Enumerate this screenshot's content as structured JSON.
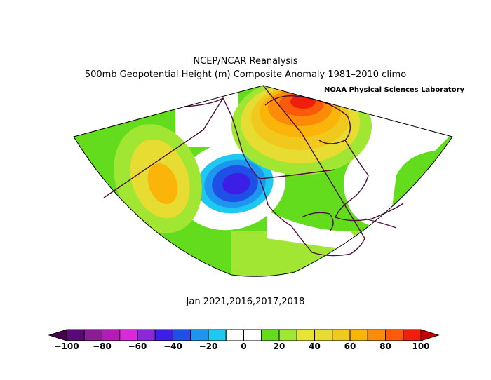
{
  "title": {
    "line1": "NCEP/NCAR Reanalysis",
    "line2": "500mb Geopotential Height (m) Composite Anomaly 1981–2010 climo",
    "credit": "NOAA Physical Sciences Laboratory"
  },
  "subtitle": "Jan 2021,2016,2017,2018",
  "colorbar": {
    "labels": [
      "−100",
      "−80",
      "−60",
      "−40",
      "−20",
      "0",
      "20",
      "40",
      "60",
      "80",
      "100"
    ],
    "bins": [
      {
        "value": -95,
        "color": "#5a0a78"
      },
      {
        "value": -85,
        "color": "#8c1b96"
      },
      {
        "value": -75,
        "color": "#b41bb4"
      },
      {
        "value": -65,
        "color": "#dc28dc"
      },
      {
        "value": -55,
        "color": "#8c28dc"
      },
      {
        "value": -45,
        "color": "#3c1ee6"
      },
      {
        "value": -35,
        "color": "#1e50e6"
      },
      {
        "value": -25,
        "color": "#1e96f0"
      },
      {
        "value": -15,
        "color": "#1ec8f0"
      },
      {
        "value": -5,
        "color": "#ffffff"
      },
      {
        "value": 5,
        "color": "#ffffff"
      },
      {
        "value": 15,
        "color": "#64dc1e"
      },
      {
        "value": 25,
        "color": "#a0e632"
      },
      {
        "value": 35,
        "color": "#e6e632"
      },
      {
        "value": 45,
        "color": "#e6dc32"
      },
      {
        "value": 55,
        "color": "#f0c81e"
      },
      {
        "value": 65,
        "color": "#fab40a"
      },
      {
        "value": 75,
        "color": "#fa8c0a"
      },
      {
        "value": 85,
        "color": "#fa5a0a"
      },
      {
        "value": 95,
        "color": "#f01e0a"
      }
    ],
    "under_color": "#46004e",
    "over_color": "#c80000"
  },
  "map": {
    "field": "500mb geopotential height composite anomaly",
    "features": [
      "positive anomaly over Alaska / northern Canada (~80-100 m)",
      "negative anomaly off the US West Coast (~-40 m)",
      "positive anomaly over the central North Pacific (~60 m)"
    ]
  }
}
